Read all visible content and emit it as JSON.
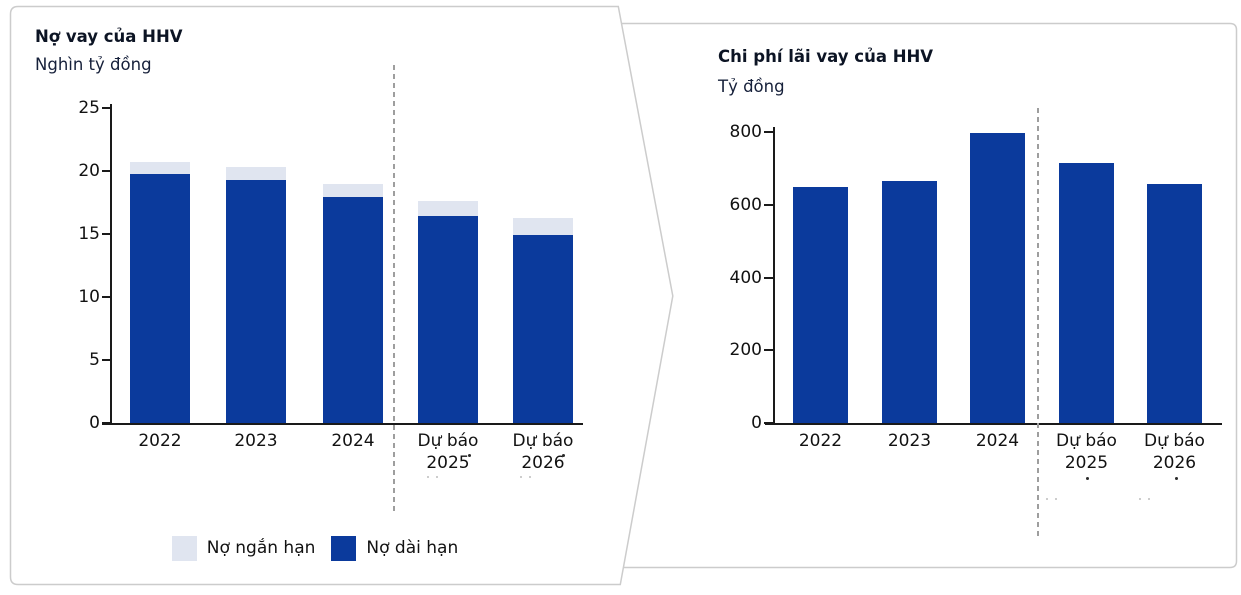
{
  "figure": {
    "background": "#ffffff",
    "panel_border_color": "#cccccc",
    "divider_color": "#9e9e9e",
    "axis_color": "#1a1a1a",
    "text_color": "#101623",
    "accent_dark_blue": "#0b3a9c",
    "accent_light_blue": "#e0e5f0"
  },
  "chart_data": [
    {
      "panel": "left",
      "type": "bar",
      "stacked": true,
      "title": "Nợ vay của HHV",
      "unit_label": "Nghìn tỷ đồng",
      "categories": [
        "2022",
        "2023",
        "2024",
        "Dự báo 2025",
        "Dự báo 2026"
      ],
      "category_lines": [
        [
          "2022"
        ],
        [
          "2023"
        ],
        [
          "2024"
        ],
        [
          "Dự báo",
          "2025"
        ],
        [
          "Dự báo",
          "2026"
        ]
      ],
      "series": [
        {
          "name": "Nợ ngắn hạn",
          "color": "#e0e5f0",
          "values": [
            0.9,
            1.0,
            1.1,
            1.2,
            1.35
          ]
        },
        {
          "name": "Nợ dài hạn",
          "color": "#0b3a9c",
          "values": [
            19.8,
            19.3,
            17.9,
            16.4,
            14.9
          ]
        }
      ],
      "stack_order_bottom_to_top": [
        "Nợ dài hạn",
        "Nợ ngắn hạn"
      ],
      "ylim": [
        0,
        25
      ],
      "y_ticks": [
        25,
        20,
        15,
        10,
        5,
        0
      ],
      "grid": false,
      "legend": {
        "position": "bottom-center",
        "entries": [
          "Nợ ngắn hạn",
          "Nợ dài hạn"
        ]
      },
      "forecast_divider_between": [
        "2024",
        "Dự báo 2025"
      ]
    },
    {
      "panel": "right",
      "type": "bar",
      "stacked": false,
      "title": "Chi phí lãi vay của HHV",
      "unit_label": "Tỷ đồng",
      "categories": [
        "2022",
        "2023",
        "2024",
        "Dự báo 2025",
        "Dự báo 2026"
      ],
      "category_lines": [
        [
          "2022"
        ],
        [
          "2023"
        ],
        [
          "2024"
        ],
        [
          "Dự báo",
          "2025"
        ],
        [
          "Dự báo",
          "2026"
        ]
      ],
      "series": [
        {
          "color": "#0b3a9c",
          "values": [
            650,
            665,
            798,
            715,
            657
          ]
        }
      ],
      "ylim": [
        0,
        800
      ],
      "y_ticks": [
        800,
        600,
        400,
        200,
        0
      ],
      "grid": false,
      "forecast_divider_between": [
        "2024",
        "Dự báo 2025"
      ]
    }
  ]
}
